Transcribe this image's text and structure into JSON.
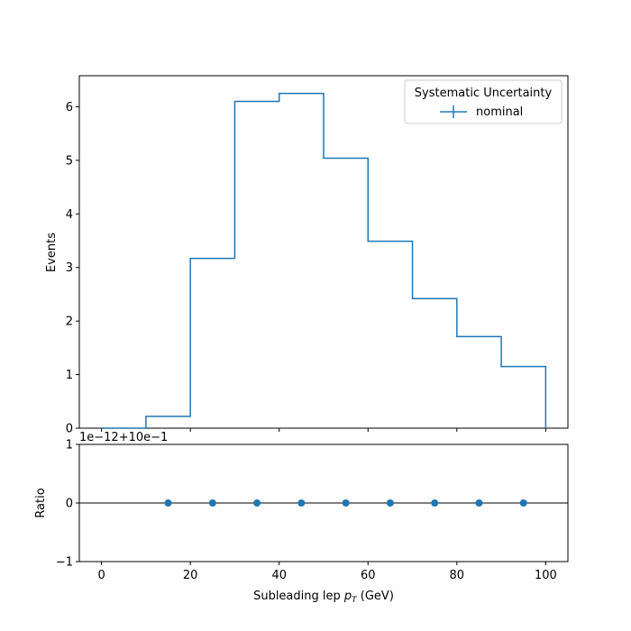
{
  "chart_data": [
    {
      "type": "step",
      "panel": "main",
      "ylabel": "Events",
      "xlim": [
        -5,
        105
      ],
      "ylim": [
        0,
        6.58
      ],
      "yticks": [
        0,
        1,
        2,
        3,
        4,
        5,
        6
      ],
      "xticks": [
        0,
        20,
        40,
        60,
        80,
        100
      ],
      "bin_edges": [
        0,
        10,
        20,
        30,
        40,
        50,
        60,
        70,
        80,
        90,
        100
      ],
      "series": [
        {
          "name": "nominal",
          "color": "#1f77b4",
          "values": [
            0.0,
            0.22,
            3.17,
            6.1,
            6.25,
            5.04,
            3.49,
            2.42,
            1.71,
            1.15
          ]
        }
      ],
      "legend": {
        "title": "Systematic Uncertainty",
        "placement": "top-right"
      }
    },
    {
      "type": "scatter",
      "panel": "ratio",
      "ylabel": "Ratio",
      "xlabel_prefix": "Subleading lep ",
      "xlabel_symbol": "p",
      "xlabel_subscript": "T",
      "xlabel_suffix": " (GeV)",
      "xlim": [
        -5,
        105
      ],
      "ylim": [
        -1,
        1
      ],
      "yticks": [
        -1,
        0,
        1
      ],
      "xticks": [
        0,
        20,
        40,
        60,
        80,
        100
      ],
      "offset_text": "1e−12+10e−1",
      "reference_line": 0,
      "x": [
        15,
        25,
        35,
        45,
        55,
        65,
        75,
        85,
        95
      ],
      "y": [
        0,
        0,
        0,
        0,
        0,
        0,
        0,
        0,
        0
      ],
      "color": "#1f77b4"
    }
  ]
}
